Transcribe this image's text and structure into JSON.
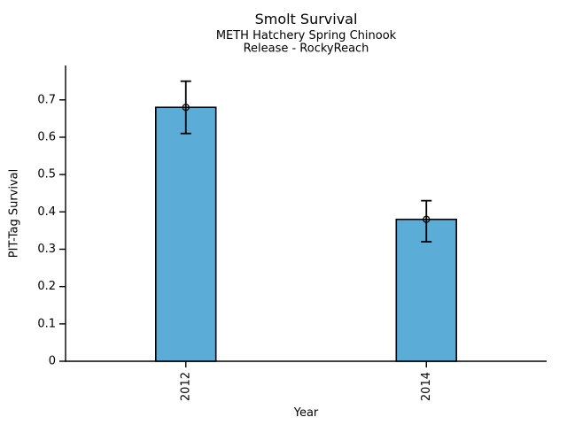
{
  "chart_data": {
    "type": "bar",
    "title": "Smolt Survival",
    "subtitle": [
      "METH Hatchery Spring Chinook",
      "Release - RockyReach"
    ],
    "categories": [
      "2012",
      "2014"
    ],
    "values": [
      0.68,
      0.38
    ],
    "error_low": [
      0.61,
      0.32
    ],
    "error_high": [
      0.75,
      0.43
    ],
    "xlabel": "Year",
    "ylabel": "PIT-Tag Survival",
    "yticks": [
      0,
      0.1,
      0.2,
      0.3,
      0.4,
      0.5,
      0.6,
      0.7
    ],
    "ytick_labels": [
      "0",
      "0.1",
      "0.2",
      "0.3",
      "0.4",
      "0.5",
      "0.6",
      "0.7"
    ],
    "ylim": [
      0,
      0.792
    ],
    "grid": false,
    "legend": false,
    "marker": "open-circle",
    "colors": {
      "bar_fill": "#5BADD8",
      "bar_edge": "#000000",
      "error_bar": "#000000",
      "axis": "#000000",
      "text": "#000000",
      "background": "#FFFFFF"
    }
  }
}
